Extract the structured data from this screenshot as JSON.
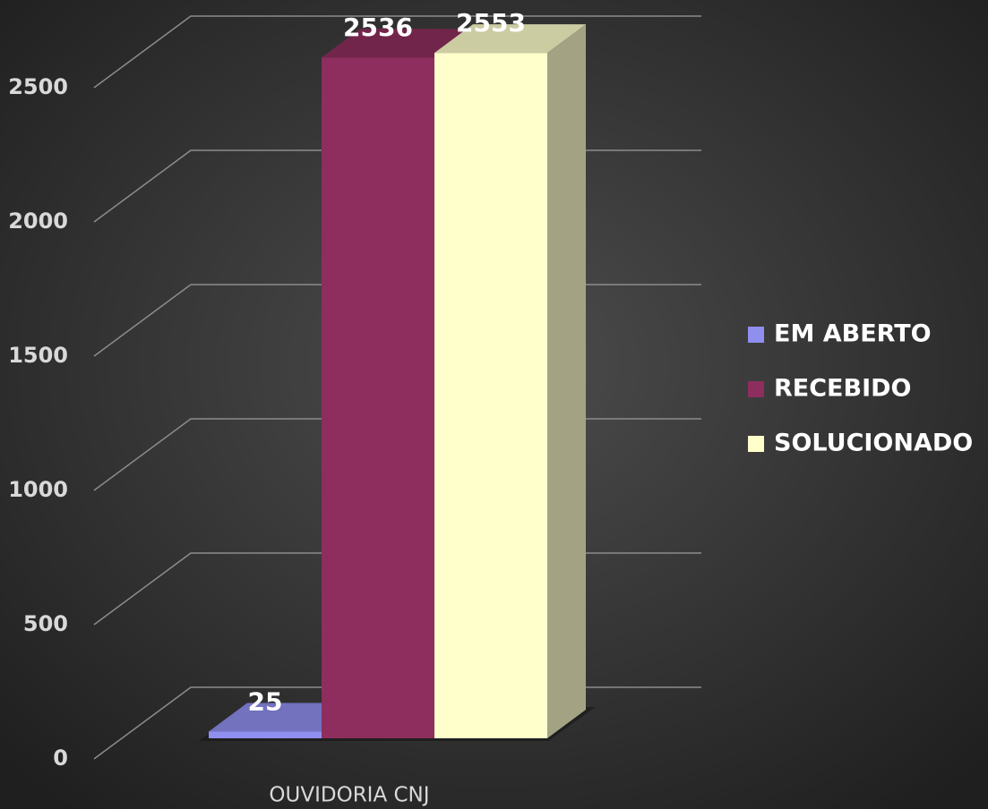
{
  "chart_data": {
    "type": "bar3d",
    "categories": [
      "OUVIDORIA CNJ"
    ],
    "series": [
      {
        "name": "EM ABERTO",
        "color": "#8f8fef",
        "values": [
          25
        ]
      },
      {
        "name": "RECEBIDO",
        "color": "#8e2e5e",
        "values": [
          2536
        ]
      },
      {
        "name": "SOLUCIONADO",
        "color": "#ffffcc",
        "values": [
          2553
        ]
      }
    ],
    "ylim": [
      0,
      2500
    ],
    "yticks": [
      0,
      500,
      1000,
      1500,
      2000,
      2500
    ],
    "grid": true,
    "legend": "right"
  }
}
